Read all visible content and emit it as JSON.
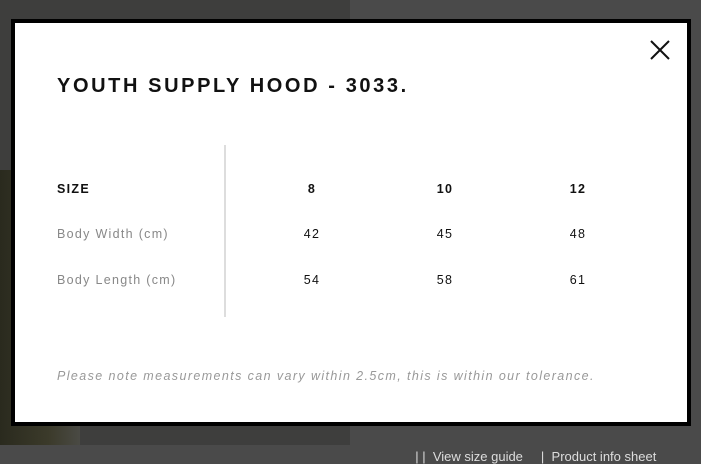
{
  "modal": {
    "title": "YOUTH SUPPLY HOOD - 3033.",
    "close_icon": "close-icon",
    "table": {
      "header_label": "SIZE",
      "sizes": [
        "8",
        "10",
        "12"
      ],
      "rows": [
        {
          "label": "Body Width (cm)",
          "values": [
            "42",
            "45",
            "48"
          ]
        },
        {
          "label": "Body Length (cm)",
          "values": [
            "54",
            "58",
            "61"
          ]
        }
      ]
    },
    "note": "Please note measurements can vary within 2.5cm, this is within our tolerance."
  },
  "background": {
    "links": [
      "| |  View size guide",
      "|  Product info sheet"
    ]
  }
}
